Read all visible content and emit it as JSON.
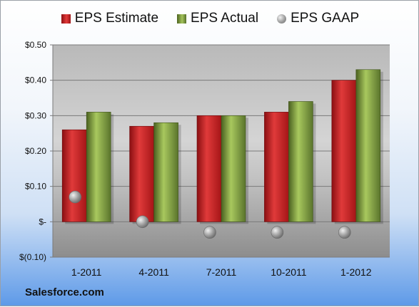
{
  "legend": {
    "estimate": "EPS Estimate",
    "actual": "EPS Actual",
    "gaap": "EPS GAAP"
  },
  "source": "Salesforce.com",
  "colors": {
    "estimate": "#c8232a",
    "actual": "#8fad4a",
    "gaap": "#9e9e9e"
  },
  "chart_data": {
    "type": "bar",
    "categories": [
      "1-2011",
      "4-2011",
      "7-2011",
      "10-2011",
      "1-2012"
    ],
    "series": [
      {
        "name": "EPS Estimate",
        "type": "bar",
        "values": [
          0.26,
          0.27,
          0.3,
          0.31,
          0.4
        ]
      },
      {
        "name": "EPS Actual",
        "type": "bar",
        "values": [
          0.31,
          0.28,
          0.3,
          0.34,
          0.43
        ]
      },
      {
        "name": "EPS GAAP",
        "type": "scatter",
        "values": [
          0.07,
          0.0,
          -0.03,
          -0.03,
          -0.03
        ]
      }
    ],
    "yticks": [
      {
        "value": 0.5,
        "label": "$0.50"
      },
      {
        "value": 0.4,
        "label": "$0.40"
      },
      {
        "value": 0.3,
        "label": "$0.30"
      },
      {
        "value": 0.2,
        "label": "$0.20"
      },
      {
        "value": 0.1,
        "label": "$0.10"
      },
      {
        "value": 0.0,
        "label": "$-"
      },
      {
        "value": -0.1,
        "label": "$(0.10)"
      }
    ],
    "ylim": [
      -0.1,
      0.5
    ],
    "grid": true,
    "legend_position": "top"
  }
}
